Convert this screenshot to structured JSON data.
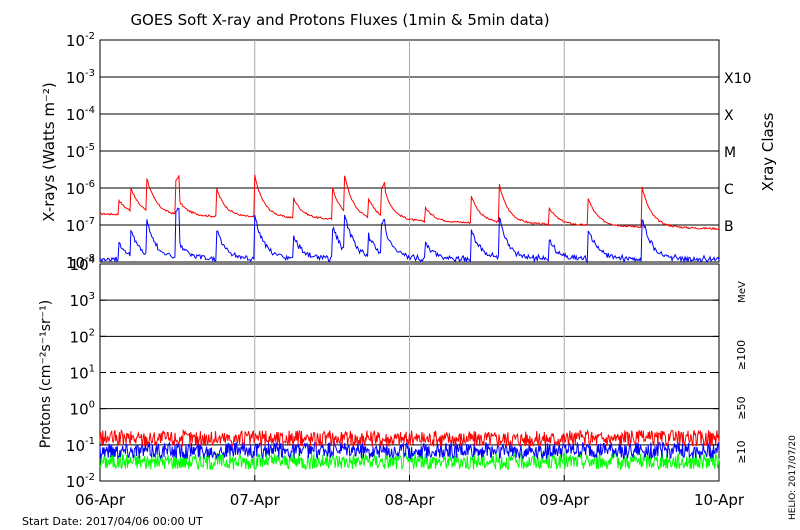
{
  "title": "GOES Soft X-ray and Protons Fluxes   (1min & 5min data)",
  "start_date": "Start Date: 2017/04/06 00:00 UT",
  "credit": "HELIO: 2017/07/20",
  "chart_data": [
    {
      "type": "line",
      "name": "xray-panel",
      "ylabel": "X-rays (Watts m⁻²)",
      "right_label": "Xray Class",
      "yscale": "log",
      "ylim": [
        1e-08,
        0.01
      ],
      "y_ticks": [
        {
          "value": 0.01,
          "base": "10",
          "exp": "-2"
        },
        {
          "value": 0.001,
          "base": "10",
          "exp": "-3"
        },
        {
          "value": 0.0001,
          "base": "10",
          "exp": "-4"
        },
        {
          "value": 1e-05,
          "base": "10",
          "exp": "-5"
        },
        {
          "value": 1e-06,
          "base": "10",
          "exp": "-6"
        },
        {
          "value": 1e-07,
          "base": "10",
          "exp": "-7"
        },
        {
          "value": 1e-08,
          "base": "10",
          "exp": "-8"
        }
      ],
      "class_labels": [
        {
          "label": "X10",
          "value": 0.001
        },
        {
          "label": "X",
          "value": 0.0001
        },
        {
          "label": "M",
          "value": 1e-05
        },
        {
          "label": "C",
          "value": 1e-06
        },
        {
          "label": "B",
          "value": 1e-07
        }
      ],
      "x": [
        "2017-04-06",
        "2017-04-06 06:00",
        "2017-04-06 12:00",
        "2017-04-06 14:00",
        "2017-04-06 18:00",
        "2017-04-07 00:00",
        "2017-04-07 02:00",
        "2017-04-07 06:00",
        "2017-04-07 12:00",
        "2017-04-07 18:00",
        "2017-04-07 20:00",
        "2017-04-07 22:00",
        "2017-04-08 00:00",
        "2017-04-08 04:00",
        "2017-04-08 08:00",
        "2017-04-08 12:00",
        "2017-04-08 18:00",
        "2017-04-09 00:00",
        "2017-04-09 06:00",
        "2017-04-09 12:00",
        "2017-04-09 18:00",
        "2017-04-10 00:00"
      ],
      "series": [
        {
          "color": "#ff0000",
          "band": "long",
          "values": [
            2.2e-07,
            2e-07,
            3e-07,
            5.5e-06,
            3e-07,
            2.5e-07,
            1.5e-06,
            3e-07,
            1.6e-07,
            1.8e-07,
            4e-06,
            4e-07,
            1.6e-07,
            1e-06,
            2.5e-07,
            1.5e-07,
            2e-07,
            1.4e-07,
            1e-07,
            9e-08,
            8e-08,
            8e-08
          ]
        },
        {
          "color": "#0000ff",
          "band": "short",
          "values": [
            1.2e-08,
            1.3e-08,
            4e-08,
            8e-07,
            2.5e-08,
            1.5e-08,
            1.2e-07,
            2e-08,
            1.3e-08,
            1.5e-08,
            5e-07,
            3e-08,
            1.4e-08,
            1e-07,
            2.5e-08,
            2e-08,
            3e-08,
            2e-08,
            1.5e-08,
            1.3e-08,
            1.2e-08,
            1.1e-08
          ]
        }
      ],
      "flares": [
        0.12,
        0.2,
        0.3,
        0.5,
        0.75,
        1.0,
        1.25,
        1.5,
        1.58,
        1.73,
        1.83,
        2.1,
        2.4,
        2.58,
        2.9,
        3.15,
        3.5
      ]
    },
    {
      "type": "line",
      "name": "proton-panel",
      "ylabel": "Protons (cm⁻²s⁻¹sr⁻¹)",
      "yscale": "log",
      "ylim": [
        0.01,
        10000
      ],
      "y_ticks": [
        {
          "value": 10000,
          "base": "10",
          "exp": "4"
        },
        {
          "value": 1000,
          "base": "10",
          "exp": "3"
        },
        {
          "value": 100,
          "base": "10",
          "exp": "2"
        },
        {
          "value": 10,
          "base": "10",
          "exp": "1"
        },
        {
          "value": 1,
          "base": "10",
          "exp": "0"
        },
        {
          "value": 0.1,
          "base": "10",
          "exp": "-1"
        },
        {
          "value": 0.01,
          "base": "10",
          "exp": "-2"
        }
      ],
      "threshold": 10,
      "unit": "MeV",
      "series": [
        {
          "label": "≥10",
          "color": "#ff0000",
          "base": 0.15
        },
        {
          "label": "≥50",
          "color": "#0000ff",
          "base": 0.07
        },
        {
          "label": "≥100",
          "color": "#00ff00",
          "base": 0.035
        }
      ]
    }
  ],
  "x_ticks": [
    "06-Apr",
    "07-Apr",
    "08-Apr",
    "09-Apr",
    "10-Apr"
  ],
  "x_days": 4
}
